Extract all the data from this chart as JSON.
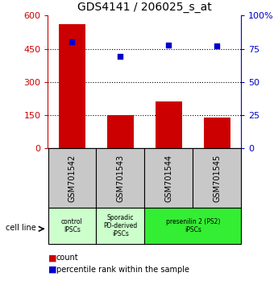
{
  "title": "GDS4141 / 206025_s_at",
  "samples": [
    "GSM701542",
    "GSM701543",
    "GSM701544",
    "GSM701545"
  ],
  "counts": [
    560,
    148,
    210,
    140
  ],
  "percentiles": [
    80,
    69,
    78,
    77
  ],
  "ylim_left": [
    0,
    600
  ],
  "ylim_right": [
    0,
    100
  ],
  "yticks_left": [
    0,
    150,
    300,
    450,
    600
  ],
  "yticks_right": [
    0,
    25,
    50,
    75,
    100
  ],
  "bar_color": "#cc0000",
  "dot_color": "#0000cc",
  "cell_line_labels": [
    "control\nIPSCs",
    "Sporadic\nPD-derived\niPSCs",
    "presenilin 2 (PS2)\niPSCs"
  ],
  "cell_line_spans": [
    [
      0,
      1
    ],
    [
      1,
      2
    ],
    [
      2,
      4
    ]
  ],
  "cell_line_colors": [
    "#ccffcc",
    "#ccffcc",
    "#33ee33"
  ],
  "group_box_color": "#c8c8c8",
  "group_box_edge": "#000000",
  "gridline_color": "#000000"
}
